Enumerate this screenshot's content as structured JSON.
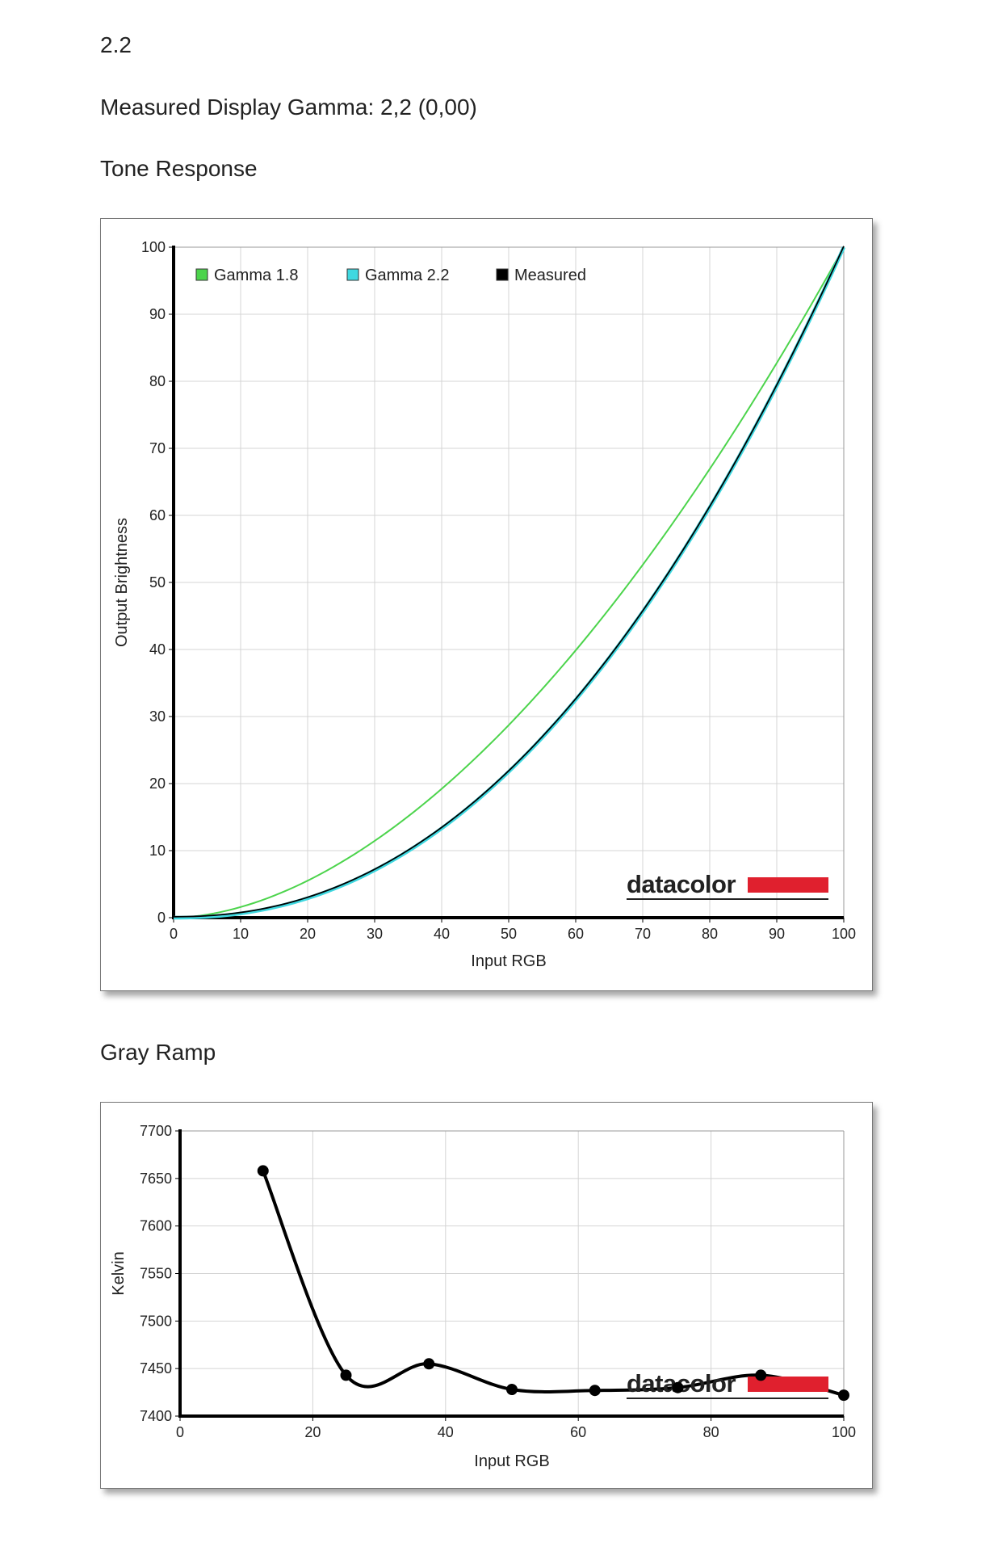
{
  "header": {
    "version": "2.2",
    "measured_gamma": "Measured Display Gamma: 2,2 (0,00)",
    "tone_title": "Tone Response",
    "gray_title": "Gray Ramp"
  },
  "brand": {
    "name": "datacolor",
    "color": "#e0202e"
  },
  "chart_data": [
    {
      "type": "line",
      "title": "Tone Response",
      "xlabel": "Input RGB",
      "ylabel": "Output Brightness",
      "xlim": [
        0,
        100
      ],
      "ylim": [
        0,
        100
      ],
      "x_ticks": [
        0,
        10,
        20,
        30,
        40,
        50,
        60,
        70,
        80,
        90,
        100
      ],
      "y_ticks": [
        0,
        10,
        20,
        30,
        40,
        50,
        60,
        70,
        80,
        90,
        100
      ],
      "grid": true,
      "legend_position": "top-left",
      "series": [
        {
          "name": "Gamma 1.8",
          "color": "#4cd44c",
          "gamma": 1.8,
          "x": [
            0,
            10,
            20,
            30,
            40,
            50,
            60,
            70,
            80,
            90,
            100
          ],
          "y": [
            0,
            1.6,
            5.5,
            11.5,
            19.2,
            28.7,
            39.9,
            52.6,
            66.9,
            82.7,
            100
          ]
        },
        {
          "name": "Gamma 2.2",
          "color": "#3fd8e0",
          "gamma": 2.2,
          "x": [
            0,
            10,
            20,
            30,
            40,
            50,
            60,
            70,
            80,
            90,
            100
          ],
          "y": [
            0,
            0.6,
            2.9,
            7.1,
            13.3,
            21.8,
            32.5,
            45.6,
            61.2,
            79.3,
            100
          ]
        },
        {
          "name": "Measured",
          "color": "#000000",
          "gamma": 2.2,
          "x": [
            0,
            10,
            20,
            30,
            40,
            50,
            60,
            70,
            80,
            90,
            100
          ],
          "y": [
            0,
            0.6,
            2.9,
            7.1,
            13.3,
            21.8,
            32.5,
            45.6,
            61.2,
            79.3,
            100
          ]
        }
      ]
    },
    {
      "type": "line",
      "title": "Gray Ramp",
      "xlabel": "Input RGB",
      "ylabel": "Kelvin",
      "xlim": [
        0,
        100
      ],
      "ylim": [
        7400,
        7700
      ],
      "x_ticks": [
        0,
        20,
        40,
        60,
        80,
        100
      ],
      "y_ticks": [
        7400,
        7450,
        7500,
        7550,
        7600,
        7650,
        7700
      ],
      "grid": true,
      "series": [
        {
          "color": "#000000",
          "x": [
            12.5,
            25,
            37.5,
            50,
            62.5,
            75,
            87.5,
            100
          ],
          "y": [
            7658,
            7443,
            7455,
            7428,
            7427,
            7430,
            7443,
            7422
          ]
        }
      ]
    }
  ]
}
